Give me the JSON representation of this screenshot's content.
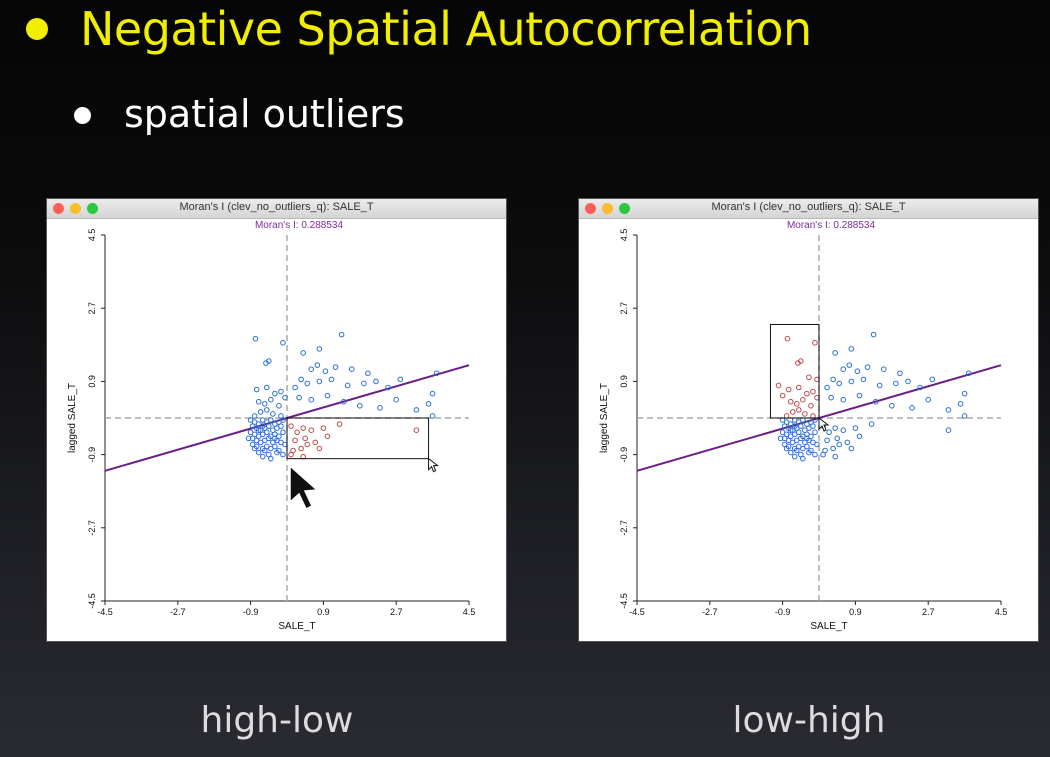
{
  "slide": {
    "title": "Negative Spatial Autocorrelation",
    "subtitle": "spatial outliers",
    "colors": {
      "title": "#f2ee00",
      "text": "#ffffff",
      "caption": "#dcdcdc"
    }
  },
  "windows": [
    {
      "title": "Moran's I (clev_no_outliers_q): SALE_T",
      "caption": "high-low"
    },
    {
      "title": "Moran's I (clev_no_outliers_q): SALE_T",
      "caption": "low-high"
    }
  ],
  "chart_data": [
    {
      "type": "scatter",
      "title": "Moran's I: 0.288534",
      "xlabel": "SALE_T",
      "ylabel": "lagged SALE_T",
      "xlim": [
        -4.5,
        4.5
      ],
      "ylim": [
        -4.5,
        4.5
      ],
      "xticks": [
        "-4.5",
        "-2.7",
        "-0.9",
        "0.9",
        "2.7",
        "4.5"
      ],
      "yticks": [
        "-4.5",
        "-2.7",
        "-0.9",
        "0.9",
        "2.7",
        "4.5"
      ],
      "slope": 0.288534,
      "colors": {
        "points": "#2a6fd6",
        "selected": "#c04a4a",
        "line": "#6a1e86",
        "title": "#7a2a9a"
      },
      "selection": {
        "x": [
          0,
          3.5
        ],
        "y": [
          -1.0,
          0
        ]
      },
      "series": [
        {
          "values": [
            [
              -0.78,
              1.95
            ],
            [
              -0.52,
              1.35
            ],
            [
              -0.45,
              1.4
            ],
            [
              -0.1,
              1.85
            ],
            [
              0.4,
              1.6
            ],
            [
              0.8,
              1.7
            ],
            [
              1.35,
              2.05
            ],
            [
              0.6,
              1.2
            ],
            [
              0.95,
              1.15
            ],
            [
              0.75,
              1.3
            ],
            [
              1.2,
              1.25
            ],
            [
              1.6,
              1.2
            ],
            [
              2.0,
              1.1
            ],
            [
              2.2,
              0.9
            ],
            [
              2.8,
              0.95
            ],
            [
              3.7,
              1.1
            ],
            [
              0.35,
              0.95
            ],
            [
              0.5,
              0.85
            ],
            [
              0.8,
              0.9
            ],
            [
              1.1,
              0.95
            ],
            [
              1.5,
              0.8
            ],
            [
              1.9,
              0.85
            ],
            [
              2.5,
              0.75
            ],
            [
              3.6,
              0.6
            ],
            [
              3.5,
              0.35
            ],
            [
              0.2,
              0.75
            ],
            [
              0.3,
              0.5
            ],
            [
              0.6,
              0.45
            ],
            [
              1.0,
              0.55
            ],
            [
              1.4,
              0.4
            ],
            [
              1.8,
              0.3
            ],
            [
              2.3,
              0.25
            ],
            [
              2.7,
              0.45
            ],
            [
              3.2,
              0.2
            ],
            [
              3.6,
              0.05
            ],
            [
              -0.75,
              0.7
            ],
            [
              -0.5,
              0.75
            ],
            [
              -0.3,
              0.6
            ],
            [
              -0.15,
              0.65
            ],
            [
              -0.7,
              0.4
            ],
            [
              -0.55,
              0.35
            ],
            [
              -0.4,
              0.45
            ],
            [
              -0.2,
              0.3
            ],
            [
              -0.05,
              0.5
            ],
            [
              -0.65,
              0.15
            ],
            [
              -0.5,
              0.2
            ],
            [
              -0.35,
              0.1
            ],
            [
              -0.15,
              0.05
            ],
            [
              -0.8,
              0.05
            ],
            [
              -0.9,
              -0.05
            ],
            [
              -0.8,
              -0.1
            ],
            [
              -0.7,
              -0.15
            ],
            [
              -0.6,
              -0.05
            ],
            [
              -0.5,
              -0.1
            ],
            [
              -0.4,
              -0.05
            ],
            [
              -0.3,
              -0.15
            ],
            [
              -0.2,
              -0.1
            ],
            [
              -0.1,
              -0.05
            ],
            [
              -0.85,
              -0.2
            ],
            [
              -0.75,
              -0.25
            ],
            [
              -0.65,
              -0.3
            ],
            [
              -0.55,
              -0.25
            ],
            [
              -0.45,
              -0.2
            ],
            [
              -0.35,
              -0.3
            ],
            [
              -0.25,
              -0.25
            ],
            [
              -0.15,
              -0.2
            ],
            [
              -0.9,
              -0.35
            ],
            [
              -0.8,
              -0.4
            ],
            [
              -0.7,
              -0.45
            ],
            [
              -0.6,
              -0.4
            ],
            [
              -0.5,
              -0.35
            ],
            [
              -0.4,
              -0.45
            ],
            [
              -0.3,
              -0.4
            ],
            [
              -0.2,
              -0.45
            ],
            [
              -0.1,
              -0.35
            ],
            [
              -0.85,
              -0.5
            ],
            [
              -0.75,
              -0.55
            ],
            [
              -0.65,
              -0.6
            ],
            [
              -0.55,
              -0.55
            ],
            [
              -0.45,
              -0.5
            ],
            [
              -0.35,
              -0.6
            ],
            [
              -0.25,
              -0.55
            ],
            [
              -0.15,
              -0.6
            ],
            [
              -0.85,
              -0.65
            ],
            [
              -0.75,
              -0.7
            ],
            [
              -0.6,
              -0.75
            ],
            [
              -0.5,
              -0.7
            ],
            [
              -0.4,
              -0.75
            ],
            [
              -0.3,
              -0.7
            ],
            [
              -0.2,
              -0.8
            ],
            [
              -0.7,
              -0.85
            ],
            [
              -0.55,
              -0.8
            ],
            [
              -0.45,
              -0.9
            ],
            [
              -0.25,
              -0.85
            ],
            [
              -0.6,
              -0.95
            ],
            [
              -0.4,
              -1.0
            ],
            [
              -0.7,
              -0.3
            ],
            [
              -0.6,
              -0.2
            ],
            [
              -0.3,
              -0.5
            ],
            [
              -0.8,
              -0.75
            ],
            [
              -0.05,
              -0.65
            ],
            [
              -0.95,
              -0.5
            ],
            [
              -0.1,
              -0.9
            ]
          ]
        },
        {
          "name": "selected",
          "values": [
            [
              0.1,
              -0.2
            ],
            [
              0.25,
              -0.35
            ],
            [
              0.4,
              -0.25
            ],
            [
              0.6,
              -0.3
            ],
            [
              0.9,
              -0.25
            ],
            [
              1.3,
              -0.15
            ],
            [
              0.2,
              -0.55
            ],
            [
              0.45,
              -0.5
            ],
            [
              0.7,
              -0.6
            ],
            [
              1.0,
              -0.45
            ],
            [
              0.15,
              -0.8
            ],
            [
              0.35,
              -0.75
            ],
            [
              0.5,
              -0.65
            ],
            [
              0.8,
              -0.75
            ],
            [
              0.1,
              -0.9
            ],
            [
              0.4,
              -0.95
            ],
            [
              3.2,
              -0.3
            ]
          ]
        }
      ]
    },
    {
      "type": "scatter",
      "title": "Moran's I: 0.288534",
      "xlabel": "SALE_T",
      "ylabel": "lagged SALE_T",
      "xlim": [
        -4.5,
        4.5
      ],
      "ylim": [
        -4.5,
        4.5
      ],
      "xticks": [
        "-4.5",
        "-2.7",
        "-0.9",
        "0.9",
        "2.7",
        "4.5"
      ],
      "yticks": [
        "-4.5",
        "-2.7",
        "-0.9",
        "0.9",
        "2.7",
        "4.5"
      ],
      "slope": 0.288534,
      "colors": {
        "points": "#2a6fd6",
        "selected": "#c04a4a",
        "line": "#6a1e86",
        "title": "#7a2a9a"
      },
      "selection": {
        "x": [
          -1.2,
          0
        ],
        "y": [
          0,
          2.3
        ]
      },
      "series": [
        {
          "values": [
            [
              1.35,
              2.05
            ],
            [
              0.8,
              1.7
            ],
            [
              0.4,
              1.6
            ],
            [
              0.6,
              1.2
            ],
            [
              0.95,
              1.15
            ],
            [
              0.75,
              1.3
            ],
            [
              1.2,
              1.25
            ],
            [
              1.6,
              1.2
            ],
            [
              2.0,
              1.1
            ],
            [
              2.2,
              0.9
            ],
            [
              2.8,
              0.95
            ],
            [
              3.7,
              1.1
            ],
            [
              0.35,
              0.95
            ],
            [
              0.5,
              0.85
            ],
            [
              0.8,
              0.9
            ],
            [
              1.1,
              0.95
            ],
            [
              1.5,
              0.8
            ],
            [
              1.9,
              0.85
            ],
            [
              2.5,
              0.75
            ],
            [
              3.6,
              0.6
            ],
            [
              3.5,
              0.35
            ],
            [
              0.2,
              0.75
            ],
            [
              0.3,
              0.5
            ],
            [
              0.6,
              0.45
            ],
            [
              1.0,
              0.55
            ],
            [
              1.4,
              0.4
            ],
            [
              1.8,
              0.3
            ],
            [
              2.3,
              0.25
            ],
            [
              2.7,
              0.45
            ],
            [
              3.2,
              0.2
            ],
            [
              3.6,
              0.05
            ],
            [
              0.1,
              -0.2
            ],
            [
              0.25,
              -0.35
            ],
            [
              0.4,
              -0.25
            ],
            [
              0.6,
              -0.3
            ],
            [
              0.9,
              -0.25
            ],
            [
              1.3,
              -0.15
            ],
            [
              0.2,
              -0.55
            ],
            [
              0.45,
              -0.5
            ],
            [
              0.7,
              -0.6
            ],
            [
              1.0,
              -0.45
            ],
            [
              0.15,
              -0.8
            ],
            [
              0.35,
              -0.75
            ],
            [
              0.5,
              -0.65
            ],
            [
              0.8,
              -0.75
            ],
            [
              0.1,
              -0.9
            ],
            [
              0.4,
              -0.95
            ],
            [
              3.2,
              -0.3
            ],
            [
              -0.9,
              -0.05
            ],
            [
              -0.8,
              -0.1
            ],
            [
              -0.7,
              -0.15
            ],
            [
              -0.6,
              -0.05
            ],
            [
              -0.5,
              -0.1
            ],
            [
              -0.4,
              -0.05
            ],
            [
              -0.3,
              -0.15
            ],
            [
              -0.2,
              -0.1
            ],
            [
              -0.1,
              -0.05
            ],
            [
              -0.85,
              -0.2
            ],
            [
              -0.75,
              -0.25
            ],
            [
              -0.65,
              -0.3
            ],
            [
              -0.55,
              -0.25
            ],
            [
              -0.45,
              -0.2
            ],
            [
              -0.35,
              -0.3
            ],
            [
              -0.25,
              -0.25
            ],
            [
              -0.15,
              -0.2
            ],
            [
              -0.9,
              -0.35
            ],
            [
              -0.8,
              -0.4
            ],
            [
              -0.7,
              -0.45
            ],
            [
              -0.6,
              -0.4
            ],
            [
              -0.5,
              -0.35
            ],
            [
              -0.4,
              -0.45
            ],
            [
              -0.3,
              -0.4
            ],
            [
              -0.2,
              -0.45
            ],
            [
              -0.1,
              -0.35
            ],
            [
              -0.85,
              -0.5
            ],
            [
              -0.75,
              -0.55
            ],
            [
              -0.65,
              -0.6
            ],
            [
              -0.55,
              -0.55
            ],
            [
              -0.45,
              -0.5
            ],
            [
              -0.35,
              -0.6
            ],
            [
              -0.25,
              -0.55
            ],
            [
              -0.15,
              -0.6
            ],
            [
              -0.85,
              -0.65
            ],
            [
              -0.75,
              -0.7
            ],
            [
              -0.6,
              -0.75
            ],
            [
              -0.5,
              -0.7
            ],
            [
              -0.4,
              -0.75
            ],
            [
              -0.3,
              -0.7
            ],
            [
              -0.2,
              -0.8
            ],
            [
              -0.7,
              -0.85
            ],
            [
              -0.55,
              -0.8
            ],
            [
              -0.45,
              -0.9
            ],
            [
              -0.25,
              -0.85
            ],
            [
              -0.6,
              -0.95
            ],
            [
              -0.4,
              -1.0
            ],
            [
              -0.7,
              -0.3
            ],
            [
              -0.6,
              -0.2
            ],
            [
              -0.3,
              -0.5
            ],
            [
              -0.8,
              -0.75
            ],
            [
              -0.05,
              -0.65
            ],
            [
              -0.95,
              -0.5
            ],
            [
              -0.1,
              -0.9
            ]
          ]
        },
        {
          "name": "selected",
          "values": [
            [
              -0.78,
              1.95
            ],
            [
              -0.52,
              1.35
            ],
            [
              -0.45,
              1.4
            ],
            [
              -0.1,
              1.85
            ],
            [
              -0.75,
              0.7
            ],
            [
              -0.5,
              0.75
            ],
            [
              -0.3,
              0.6
            ],
            [
              -0.15,
              0.65
            ],
            [
              -0.7,
              0.4
            ],
            [
              -0.55,
              0.35
            ],
            [
              -0.4,
              0.45
            ],
            [
              -0.2,
              0.3
            ],
            [
              -0.05,
              0.5
            ],
            [
              -0.65,
              0.15
            ],
            [
              -0.5,
              0.2
            ],
            [
              -0.35,
              0.1
            ],
            [
              -0.15,
              0.05
            ],
            [
              -0.8,
              0.05
            ],
            [
              -1.0,
              0.8
            ],
            [
              -0.9,
              0.55
            ],
            [
              -0.25,
              1.0
            ],
            [
              -0.05,
              0.95
            ]
          ]
        }
      ]
    }
  ]
}
